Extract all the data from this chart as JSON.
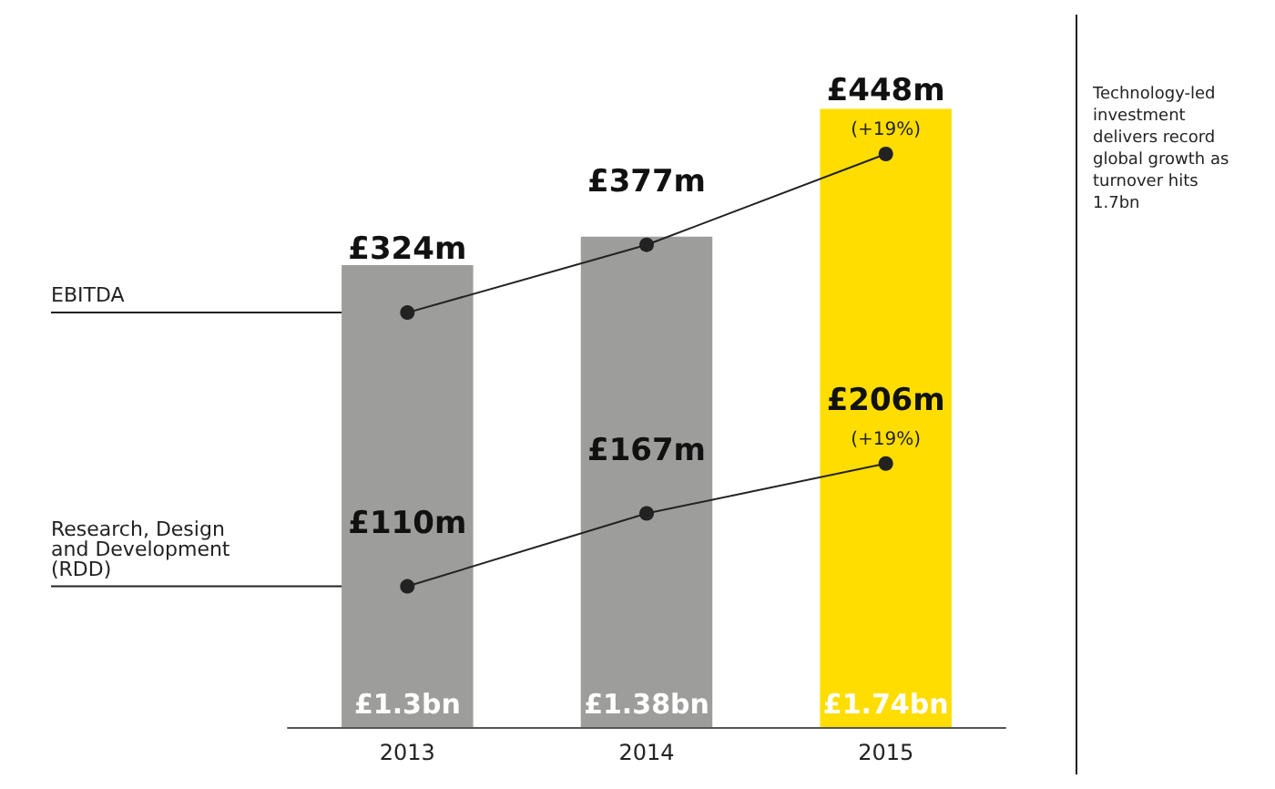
{
  "chart_data": {
    "type": "bar",
    "categories": [
      "2013",
      "2014",
      "2015"
    ],
    "tick_labels": "x",
    "grid": false,
    "legend": false,
    "marker": "circle",
    "series": [
      {
        "colors": [
          "#9d9d9b",
          "#9d9d9b",
          "#ffdd00"
        ],
        "values": [
          1.3,
          1.38,
          1.74
        ],
        "value_labels": [
          "£1.3bn",
          "£1.38bn",
          "£1.74bn"
        ]
      },
      {
        "type": "line",
        "axis": "y2",
        "name": "EBITDA",
        "color": "#222222",
        "values": [
          324,
          377,
          448
        ],
        "value_labels": [
          "£324m",
          "£377m",
          "£448m"
        ]
      },
      {
        "type": "line",
        "axis": "y2",
        "name": "Research, Design and Development (RDD)",
        "color": "#222222",
        "values": [
          110,
          167,
          206
        ],
        "value_labels": [
          "£110m",
          "£167m",
          "£206m"
        ]
      }
    ],
    "annotations": [
      "(+19%)",
      "(+19%)",
      "Technology-led investment delivers record global growth as turnover hits 1.7bn"
    ]
  }
}
